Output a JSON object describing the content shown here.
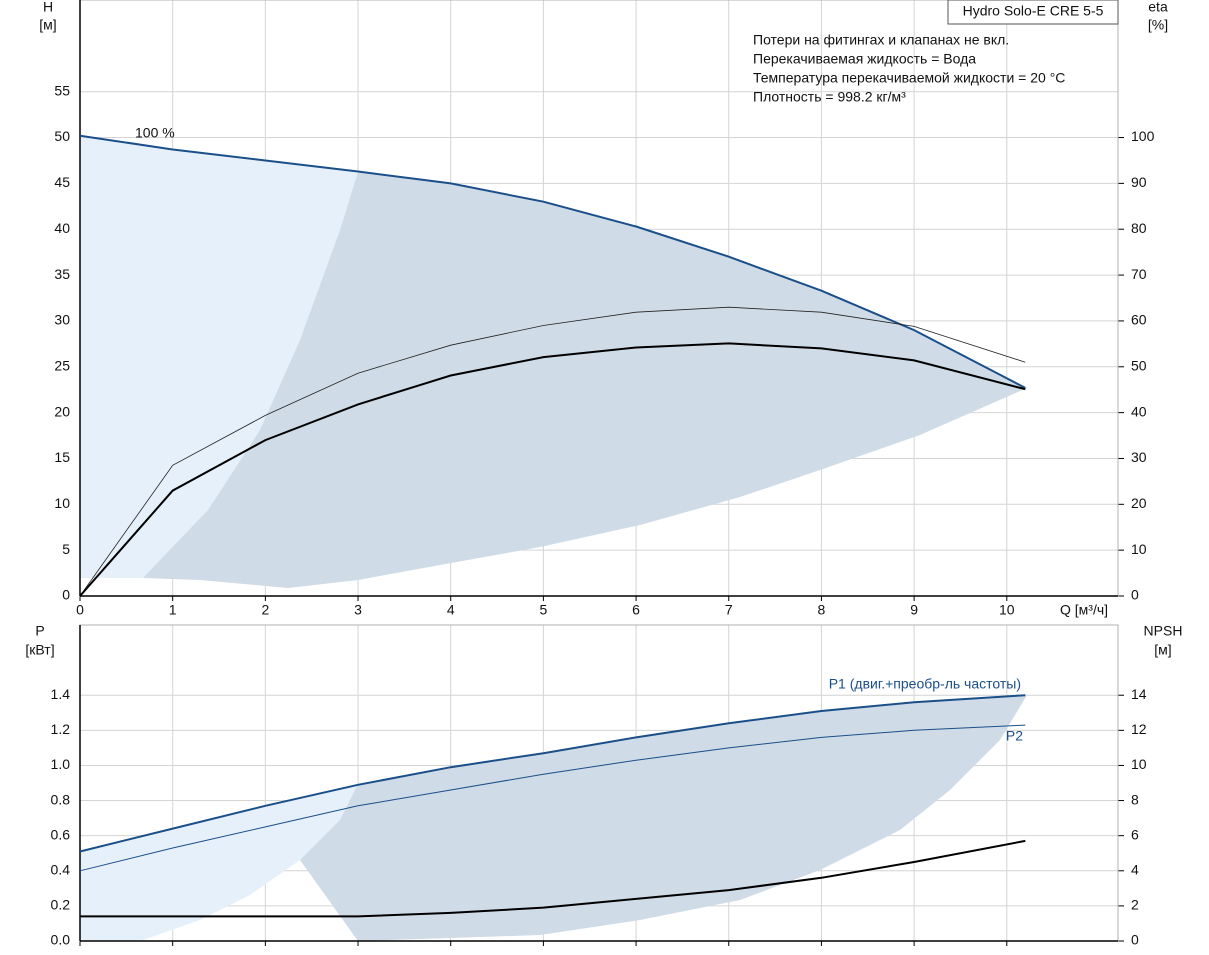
{
  "chart_data": [
    {
      "type": "line",
      "title": "Hydro Solo-E CRE 5-5",
      "notes": [
        "Потери на фитингах и клапанах не вкл.",
        "Перекачиваемая жидкость = Вода",
        "Температура перекачиваемой жидкости = 20 °C",
        "Плотность = 998.2 кг/м³"
      ],
      "annotation": "100 %",
      "ylabel": "H",
      "yunit": "[м]",
      "y2label": "eta",
      "y2unit": "[%]",
      "xlabel": "Q [м³/ч]",
      "x": [
        0,
        1,
        2,
        3,
        4,
        5,
        6,
        7,
        8,
        9,
        10.2
      ],
      "xlim": [
        0,
        11.2
      ],
      "xticks": [
        0,
        1,
        2,
        3,
        4,
        5,
        6,
        7,
        8,
        9,
        10
      ],
      "ylim": [
        0,
        65
      ],
      "yticks": [
        0,
        5,
        10,
        15,
        20,
        25,
        30,
        35,
        40,
        45,
        50,
        55
      ],
      "y2lim": [
        0,
        130
      ],
      "y2ticks": [
        0,
        10,
        20,
        30,
        40,
        50,
        60,
        70,
        80,
        90,
        100
      ],
      "grid": true,
      "series": [
        {
          "color": "#1a4f8a",
          "line_width": 2,
          "values": [
            50.2,
            48.7,
            47.5,
            46.3,
            45,
            43,
            40.3,
            37,
            33.3,
            29,
            22.7
          ]
        },
        {
          "color": "#222222",
          "line_width": 0.8,
          "axis": "y2",
          "values": [
            0,
            28.5,
            39.4,
            48.6,
            54.7,
            59,
            61.9,
            63,
            61.9,
            58.8,
            51
          ]
        },
        {
          "color": "#000000",
          "line_width": 2,
          "axis": "y2",
          "values": [
            0,
            23,
            34,
            41.8,
            48.1,
            52.1,
            54.2,
            55.1,
            54,
            51.4,
            45.1
          ]
        }
      ]
    },
    {
      "type": "line",
      "ylabel": "P",
      "yunit": "[кВт]",
      "y2label": "NPSH",
      "y2unit": "[м]",
      "x": [
        0,
        1,
        2,
        3,
        4,
        5,
        6,
        7,
        8,
        9,
        10.2
      ],
      "xlim": [
        0,
        11.2
      ],
      "xticks": [
        0,
        1,
        2,
        3,
        4,
        5,
        6,
        7,
        8,
        9,
        10
      ],
      "ylim": [
        0,
        1.8
      ],
      "yticks": [
        {
          "value": 0,
          "label": "0.0"
        },
        0.2,
        0.4,
        0.6,
        0.8,
        {
          "value": 1,
          "label": "1.0"
        },
        1.2,
        1.4
      ],
      "y2lim": [
        0,
        18
      ],
      "y2ticks": [
        0,
        2,
        4,
        6,
        8,
        10,
        12,
        14
      ],
      "grid": true,
      "series": [
        {
          "name": "P1 (двиг.+преобр-ль частоты)",
          "color": "#1a4f8a",
          "line_width": 2,
          "values": [
            0.51,
            0.64,
            0.77,
            0.89,
            0.99,
            1.07,
            1.16,
            1.24,
            1.31,
            1.36,
            1.4
          ]
        },
        {
          "name": "P2",
          "color": "#1a4f8a",
          "line_width": 1,
          "values": [
            0.4,
            0.53,
            0.65,
            0.77,
            0.86,
            0.95,
            1.03,
            1.1,
            1.16,
            1.2,
            1.23
          ]
        },
        {
          "color": "#000000",
          "line_width": 2,
          "axis": "y2",
          "values": [
            1.4,
            1.4,
            1.4,
            1.4,
            1.6,
            1.9,
            2.4,
            2.9,
            3.6,
            4.5,
            5.7
          ]
        }
      ]
    }
  ]
}
